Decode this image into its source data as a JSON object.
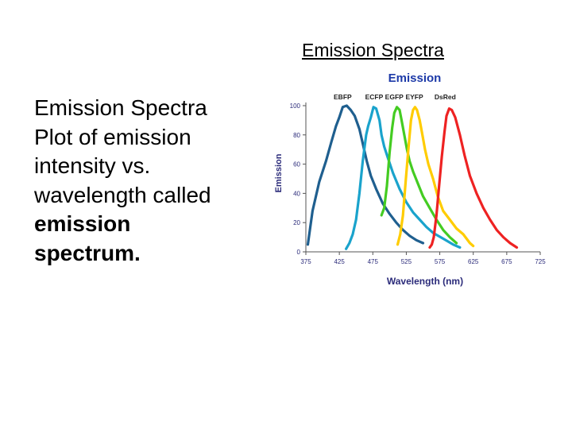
{
  "slide": {
    "title": "Emission Spectra",
    "body_line1": "Emission Spectra Plot of emission intensity vs. wavelength called",
    "body_line2": "emission",
    "body_line3": "spectrum."
  },
  "colors": {
    "EBFP": "#1f5f8f",
    "ECFP": "#1aa3cc",
    "EGFP": "#44cc22",
    "EYFP": "#ffcc00",
    "DsRed": "#ee2222",
    "axis_text": "#2b2b7a",
    "title_text": "#1d3aa8"
  },
  "chart_data": {
    "type": "line",
    "title": "Emission",
    "xlabel": "Wavelength (nm)",
    "ylabel": "Emission",
    "xlim": [
      375,
      725
    ],
    "ylim": [
      0,
      100
    ],
    "xticks": [
      375,
      425,
      475,
      525,
      575,
      625,
      675,
      725
    ],
    "yticks": [
      0,
      20,
      40,
      60,
      80,
      100
    ],
    "grid": false,
    "legend": "series labels above peaks",
    "series": [
      {
        "name": "EBFP",
        "label_x": 430,
        "points": [
          [
            378,
            5
          ],
          [
            385,
            28
          ],
          [
            395,
            48
          ],
          [
            405,
            62
          ],
          [
            413,
            75
          ],
          [
            420,
            86
          ],
          [
            425,
            92
          ],
          [
            430,
            99
          ],
          [
            436,
            100
          ],
          [
            442,
            97
          ],
          [
            448,
            93
          ],
          [
            455,
            84
          ],
          [
            461,
            72
          ],
          [
            466,
            62
          ],
          [
            472,
            52
          ],
          [
            480,
            43
          ],
          [
            490,
            33
          ],
          [
            500,
            26
          ],
          [
            510,
            20
          ],
          [
            520,
            15
          ],
          [
            530,
            11
          ],
          [
            540,
            8
          ],
          [
            550,
            6
          ]
        ]
      },
      {
        "name": "ECFP",
        "label_x": 477,
        "points": [
          [
            435,
            2
          ],
          [
            440,
            6
          ],
          [
            445,
            12
          ],
          [
            450,
            22
          ],
          [
            455,
            40
          ],
          [
            460,
            62
          ],
          [
            465,
            80
          ],
          [
            468,
            86
          ],
          [
            472,
            92
          ],
          [
            476,
            99
          ],
          [
            480,
            98
          ],
          [
            485,
            90
          ],
          [
            488,
            80
          ],
          [
            492,
            72
          ],
          [
            497,
            65
          ],
          [
            505,
            54
          ],
          [
            515,
            43
          ],
          [
            525,
            34
          ],
          [
            535,
            27
          ],
          [
            545,
            22
          ],
          [
            555,
            17
          ],
          [
            565,
            13
          ],
          [
            580,
            9
          ],
          [
            595,
            5
          ],
          [
            605,
            3
          ]
        ]
      },
      {
        "name": "EGFP",
        "label_x": 507,
        "points": [
          [
            488,
            25
          ],
          [
            492,
            30
          ],
          [
            496,
            45
          ],
          [
            500,
            68
          ],
          [
            504,
            85
          ],
          [
            507,
            95
          ],
          [
            511,
            99
          ],
          [
            515,
            97
          ],
          [
            518,
            90
          ],
          [
            522,
            80
          ],
          [
            526,
            70
          ],
          [
            530,
            62
          ],
          [
            535,
            55
          ],
          [
            542,
            47
          ],
          [
            550,
            38
          ],
          [
            560,
            30
          ],
          [
            570,
            22
          ],
          [
            580,
            15
          ],
          [
            590,
            10
          ],
          [
            600,
            6
          ]
        ]
      },
      {
        "name": "EYFP",
        "label_x": 537,
        "points": [
          [
            512,
            5
          ],
          [
            516,
            12
          ],
          [
            520,
            25
          ],
          [
            524,
            48
          ],
          [
            528,
            70
          ],
          [
            532,
            90
          ],
          [
            535,
            97
          ],
          [
            538,
            99
          ],
          [
            541,
            97
          ],
          [
            545,
            90
          ],
          [
            549,
            80
          ],
          [
            553,
            70
          ],
          [
            558,
            60
          ],
          [
            565,
            50
          ],
          [
            572,
            38
          ],
          [
            580,
            28
          ],
          [
            590,
            22
          ],
          [
            600,
            16
          ],
          [
            610,
            12
          ],
          [
            620,
            6
          ],
          [
            625,
            4
          ]
        ]
      },
      {
        "name": "DsRed",
        "label_x": 583,
        "points": [
          [
            560,
            3
          ],
          [
            563,
            5
          ],
          [
            566,
            10
          ],
          [
            570,
            25
          ],
          [
            574,
            45
          ],
          [
            578,
            65
          ],
          [
            582,
            82
          ],
          [
            585,
            93
          ],
          [
            589,
            98
          ],
          [
            593,
            97
          ],
          [
            598,
            92
          ],
          [
            605,
            80
          ],
          [
            612,
            66
          ],
          [
            620,
            52
          ],
          [
            630,
            40
          ],
          [
            640,
            30
          ],
          [
            650,
            22
          ],
          [
            660,
            15
          ],
          [
            670,
            10
          ],
          [
            680,
            6
          ],
          [
            690,
            3
          ]
        ]
      }
    ]
  }
}
